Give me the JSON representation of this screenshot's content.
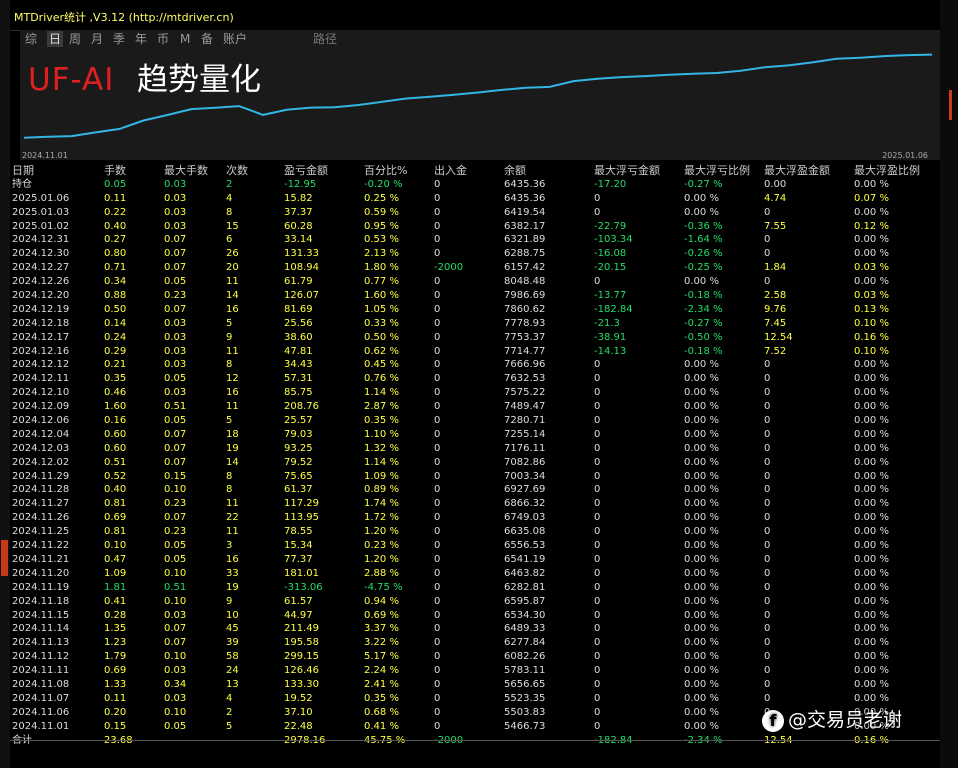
{
  "window": {
    "title": "MTDriver统计 ,V3.12 (http://mtdriver.cn)"
  },
  "toolbar": {
    "tabs": [
      "综",
      "日",
      "周",
      "月",
      "季",
      "年",
      "币",
      "M",
      "备",
      "账户"
    ],
    "active": 1,
    "path_label": "路径"
  },
  "chart": {
    "start_label": "2024.11.01",
    "end_label": "2025.01.06",
    "brand_red": "UF-AI",
    "brand_white": "趋势量化"
  },
  "chart_data": {
    "type": "line",
    "x": [
      "2024.11.01",
      "2024.11.06",
      "2024.11.07",
      "2024.11.08",
      "2024.11.11",
      "2024.11.12",
      "2024.11.13",
      "2024.11.14",
      "2024.11.15",
      "2024.11.18",
      "2024.11.19",
      "2024.11.20",
      "2024.11.21",
      "2024.11.22",
      "2024.11.25",
      "2024.11.26",
      "2024.11.27",
      "2024.11.28",
      "2024.11.29",
      "2024.12.02",
      "2024.12.03",
      "2024.12.04",
      "2024.12.06",
      "2024.12.09",
      "2024.12.10",
      "2024.12.11",
      "2024.12.12",
      "2024.12.16",
      "2024.12.17",
      "2024.12.18",
      "2024.12.19",
      "2024.12.20",
      "2024.12.26",
      "2024.12.27",
      "2024.12.30",
      "2024.12.31",
      "2025.01.02",
      "2025.01.03",
      "2025.01.06"
    ],
    "series": [
      {
        "values": [
          5466.73,
          5503.83,
          5523.35,
          5656.65,
          5783.11,
          6082.26,
          6277.84,
          6489.33,
          6534.3,
          6595.87,
          6282.81,
          6463.82,
          6541.19,
          6556.53,
          6635.08,
          6749.03,
          6866.32,
          6927.69,
          7003.34,
          7082.86,
          7176.11,
          7255.14,
          7280.71,
          7489.47,
          7575.22,
          7632.53,
          7666.96,
          7714.77,
          7753.37,
          7778.93,
          7860.62,
          7986.69,
          8048.48,
          8157.42,
          8288.75,
          8321.89,
          8382.17,
          8419.54,
          8435.36
        ]
      }
    ],
    "line_color": "#33b5e5"
  },
  "table": {
    "headers": [
      "日期",
      "手数",
      "最大手数",
      "次数",
      "盈亏金额",
      "百分比%",
      "出入金",
      "余额",
      "最大浮亏金额",
      "最大浮亏比例",
      "最大浮盈金额",
      "最大浮盈比例"
    ],
    "rows": [
      [
        "持仓",
        "0.05",
        "0.03",
        "2",
        "-12.95",
        "-0.20 %",
        "0",
        "6435.36",
        "-17.20",
        "-0.27 %",
        "0.00",
        "0.00 %"
      ],
      [
        "2025.01.06",
        "0.11",
        "0.03",
        "4",
        "15.82",
        "0.25 %",
        "0",
        "6435.36",
        "0",
        "0.00 %",
        "4.74",
        "0.07 %"
      ],
      [
        "2025.01.03",
        "0.22",
        "0.03",
        "8",
        "37.37",
        "0.59 %",
        "0",
        "6419.54",
        "0",
        "0.00 %",
        "0",
        "0.00 %"
      ],
      [
        "2025.01.02",
        "0.40",
        "0.03",
        "15",
        "60.28",
        "0.95 %",
        "0",
        "6382.17",
        "-22.79",
        "-0.36 %",
        "7.55",
        "0.12 %"
      ],
      [
        "2024.12.31",
        "0.27",
        "0.07",
        "6",
        "33.14",
        "0.53 %",
        "0",
        "6321.89",
        "-103.34",
        "-1.64 %",
        "0",
        "0.00 %"
      ],
      [
        "2024.12.30",
        "0.80",
        "0.07",
        "26",
        "131.33",
        "2.13 %",
        "0",
        "6288.75",
        "-16.08",
        "-0.26 %",
        "0",
        "0.00 %"
      ],
      [
        "2024.12.27",
        "0.71",
        "0.07",
        "20",
        "108.94",
        "1.80 %",
        "-2000",
        "6157.42",
        "-20.15",
        "-0.25 %",
        "1.84",
        "0.03 %"
      ],
      [
        "2024.12.26",
        "0.34",
        "0.05",
        "11",
        "61.79",
        "0.77 %",
        "0",
        "8048.48",
        "0",
        "0.00 %",
        "0",
        "0.00 %"
      ],
      [
        "2024.12.20",
        "0.88",
        "0.23",
        "14",
        "126.07",
        "1.60 %",
        "0",
        "7986.69",
        "-13.77",
        "-0.18 %",
        "2.58",
        "0.03 %"
      ],
      [
        "2024.12.19",
        "0.50",
        "0.07",
        "16",
        "81.69",
        "1.05 %",
        "0",
        "7860.62",
        "-182.84",
        "-2.34 %",
        "9.76",
        "0.13 %"
      ],
      [
        "2024.12.18",
        "0.14",
        "0.03",
        "5",
        "25.56",
        "0.33 %",
        "0",
        "7778.93",
        "-21.3",
        "-0.27 %",
        "7.45",
        "0.10 %"
      ],
      [
        "2024.12.17",
        "0.24",
        "0.03",
        "9",
        "38.60",
        "0.50 %",
        "0",
        "7753.37",
        "-38.91",
        "-0.50 %",
        "12.54",
        "0.16 %"
      ],
      [
        "2024.12.16",
        "0.29",
        "0.03",
        "11",
        "47.81",
        "0.62 %",
        "0",
        "7714.77",
        "-14.13",
        "-0.18 %",
        "7.52",
        "0.10 %"
      ],
      [
        "2024.12.12",
        "0.21",
        "0.03",
        "8",
        "34.43",
        "0.45 %",
        "0",
        "7666.96",
        "0",
        "0.00 %",
        "0",
        "0.00 %"
      ],
      [
        "2024.12.11",
        "0.35",
        "0.05",
        "12",
        "57.31",
        "0.76 %",
        "0",
        "7632.53",
        "0",
        "0.00 %",
        "0",
        "0.00 %"
      ],
      [
        "2024.12.10",
        "0.46",
        "0.03",
        "16",
        "85.75",
        "1.14 %",
        "0",
        "7575.22",
        "0",
        "0.00 %",
        "0",
        "0.00 %"
      ],
      [
        "2024.12.09",
        "1.60",
        "0.51",
        "11",
        "208.76",
        "2.87 %",
        "0",
        "7489.47",
        "0",
        "0.00 %",
        "0",
        "0.00 %"
      ],
      [
        "2024.12.06",
        "0.16",
        "0.05",
        "5",
        "25.57",
        "0.35 %",
        "0",
        "7280.71",
        "0",
        "0.00 %",
        "0",
        "0.00 %"
      ],
      [
        "2024.12.04",
        "0.60",
        "0.07",
        "18",
        "79.03",
        "1.10 %",
        "0",
        "7255.14",
        "0",
        "0.00 %",
        "0",
        "0.00 %"
      ],
      [
        "2024.12.03",
        "0.60",
        "0.07",
        "19",
        "93.25",
        "1.32 %",
        "0",
        "7176.11",
        "0",
        "0.00 %",
        "0",
        "0.00 %"
      ],
      [
        "2024.12.02",
        "0.51",
        "0.07",
        "14",
        "79.52",
        "1.14 %",
        "0",
        "7082.86",
        "0",
        "0.00 %",
        "0",
        "0.00 %"
      ],
      [
        "2024.11.29",
        "0.52",
        "0.15",
        "8",
        "75.65",
        "1.09 %",
        "0",
        "7003.34",
        "0",
        "0.00 %",
        "0",
        "0.00 %"
      ],
      [
        "2024.11.28",
        "0.40",
        "0.10",
        "8",
        "61.37",
        "0.89 %",
        "0",
        "6927.69",
        "0",
        "0.00 %",
        "0",
        "0.00 %"
      ],
      [
        "2024.11.27",
        "0.81",
        "0.23",
        "11",
        "117.29",
        "1.74 %",
        "0",
        "6866.32",
        "0",
        "0.00 %",
        "0",
        "0.00 %"
      ],
      [
        "2024.11.26",
        "0.69",
        "0.07",
        "22",
        "113.95",
        "1.72 %",
        "0",
        "6749.03",
        "0",
        "0.00 %",
        "0",
        "0.00 %"
      ],
      [
        "2024.11.25",
        "0.81",
        "0.23",
        "11",
        "78.55",
        "1.20 %",
        "0",
        "6635.08",
        "0",
        "0.00 %",
        "0",
        "0.00 %"
      ],
      [
        "2024.11.22",
        "0.10",
        "0.05",
        "3",
        "15.34",
        "0.23 %",
        "0",
        "6556.53",
        "0",
        "0.00 %",
        "0",
        "0.00 %"
      ],
      [
        "2024.11.21",
        "0.47",
        "0.05",
        "16",
        "77.37",
        "1.20 %",
        "0",
        "6541.19",
        "0",
        "0.00 %",
        "0",
        "0.00 %"
      ],
      [
        "2024.11.20",
        "1.09",
        "0.10",
        "33",
        "181.01",
        "2.88 %",
        "0",
        "6463.82",
        "0",
        "0.00 %",
        "0",
        "0.00 %"
      ],
      [
        "2024.11.19",
        "1.81",
        "0.51",
        "19",
        "-313.06",
        "-4.75 %",
        "0",
        "6282.81",
        "0",
        "0.00 %",
        "0",
        "0.00 %"
      ],
      [
        "2024.11.18",
        "0.41",
        "0.10",
        "9",
        "61.57",
        "0.94 %",
        "0",
        "6595.87",
        "0",
        "0.00 %",
        "0",
        "0.00 %"
      ],
      [
        "2024.11.15",
        "0.28",
        "0.03",
        "10",
        "44.97",
        "0.69 %",
        "0",
        "6534.30",
        "0",
        "0.00 %",
        "0",
        "0.00 %"
      ],
      [
        "2024.11.14",
        "1.35",
        "0.07",
        "45",
        "211.49",
        "3.37 %",
        "0",
        "6489.33",
        "0",
        "0.00 %",
        "0",
        "0.00 %"
      ],
      [
        "2024.11.13",
        "1.23",
        "0.07",
        "39",
        "195.58",
        "3.22 %",
        "0",
        "6277.84",
        "0",
        "0.00 %",
        "0",
        "0.00 %"
      ],
      [
        "2024.11.12",
        "1.79",
        "0.10",
        "58",
        "299.15",
        "5.17 %",
        "0",
        "6082.26",
        "0",
        "0.00 %",
        "0",
        "0.00 %"
      ],
      [
        "2024.11.11",
        "0.69",
        "0.03",
        "24",
        "126.46",
        "2.24 %",
        "0",
        "5783.11",
        "0",
        "0.00 %",
        "0",
        "0.00 %"
      ],
      [
        "2024.11.08",
        "1.33",
        "0.34",
        "13",
        "133.30",
        "2.41 %",
        "0",
        "5656.65",
        "0",
        "0.00 %",
        "0",
        "0.00 %"
      ],
      [
        "2024.11.07",
        "0.11",
        "0.03",
        "4",
        "19.52",
        "0.35 %",
        "0",
        "5523.35",
        "0",
        "0.00 %",
        "0",
        "0.00 %"
      ],
      [
        "2024.11.06",
        "0.20",
        "0.10",
        "2",
        "37.10",
        "0.68 %",
        "0",
        "5503.83",
        "0",
        "0.00 %",
        "0",
        "0.00 %"
      ],
      [
        "2024.11.01",
        "0.15",
        "0.05",
        "5",
        "22.48",
        "0.41 %",
        "0",
        "5466.73",
        "0",
        "0.00 %",
        "0",
        "0.00 %"
      ]
    ],
    "total": [
      "合计",
      "23.68",
      "",
      "",
      "2978.16",
      "45.75 %",
      "-2000",
      "",
      "-182.84",
      "-2.34 %",
      "12.54",
      "0.16 %"
    ]
  },
  "watermark": {
    "logo": "f",
    "text": "@交易员老谢"
  }
}
